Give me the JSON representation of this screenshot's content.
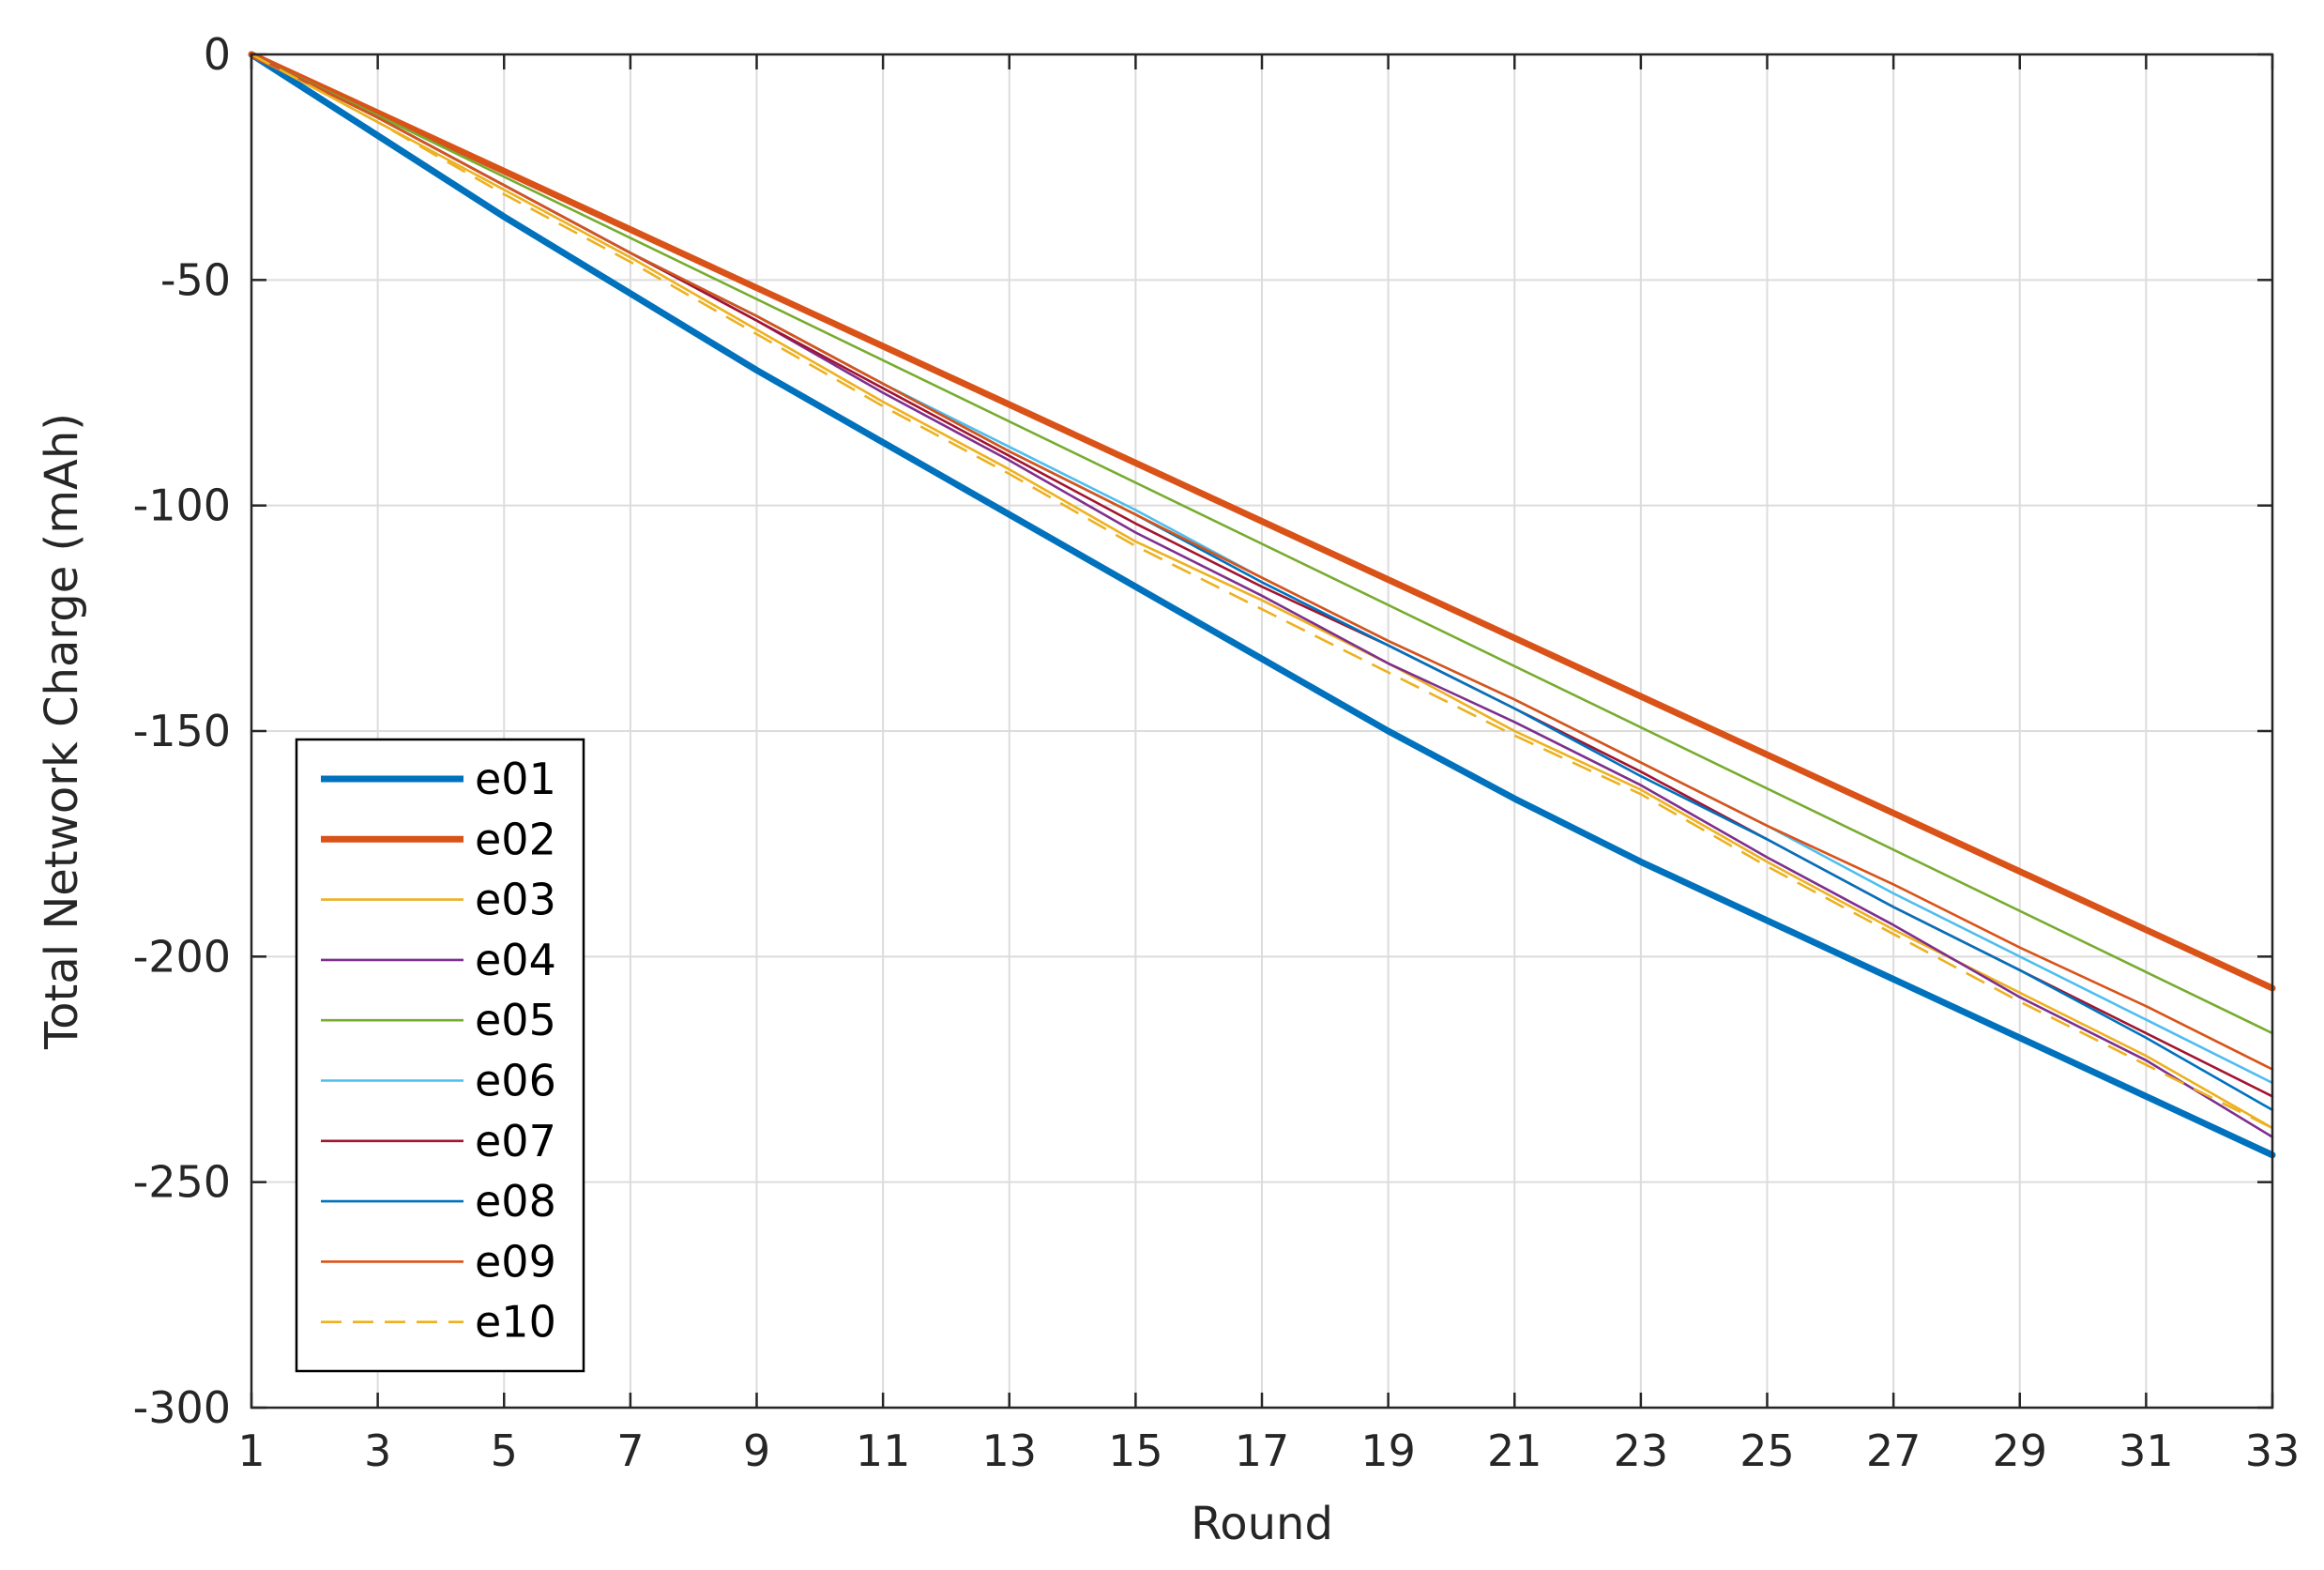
{
  "chart_data": {
    "type": "line",
    "title": "",
    "xlabel": "Round",
    "ylabel": "Total Network Charge (mAh)",
    "xlim": [
      1,
      33
    ],
    "ylim": [
      -300,
      0
    ],
    "xticks": [
      1,
      3,
      5,
      7,
      9,
      11,
      13,
      15,
      17,
      19,
      21,
      23,
      25,
      27,
      29,
      31,
      33
    ],
    "yticks": [
      0,
      -50,
      -100,
      -150,
      -200,
      -250,
      -300
    ],
    "grid": true,
    "legend": "bottom-left",
    "series": [
      {
        "name": "e01",
        "color": "#0072BD",
        "style": "solid",
        "weight": "thick",
        "x": [
          1,
          3,
          5,
          7,
          9,
          11,
          13,
          15,
          17,
          19,
          21,
          23,
          25,
          27,
          29,
          31,
          33
        ],
        "y": [
          0,
          -18,
          -36,
          -53,
          -70,
          -86,
          -102,
          -118,
          -134,
          -150,
          -165,
          -179,
          -192,
          -205,
          -218,
          -231,
          -244
        ]
      },
      {
        "name": "e02",
        "color": "#D95319",
        "style": "solid",
        "weight": "thick",
        "x": [
          1,
          33
        ],
        "y": [
          0,
          -207
        ]
      },
      {
        "name": "e03",
        "color": "#EDB120",
        "style": "solid",
        "weight": "thin",
        "x": [
          1,
          3,
          5,
          7,
          9,
          11,
          13,
          15,
          17,
          19,
          21,
          23,
          25,
          27,
          29,
          31,
          33
        ],
        "y": [
          0,
          -15,
          -30,
          -45,
          -61,
          -77,
          -92,
          -108,
          -121,
          -135,
          -150,
          -163,
          -179,
          -194,
          -208,
          -222,
          -238
        ]
      },
      {
        "name": "e04",
        "color": "#7E2F8E",
        "style": "solid",
        "weight": "thin",
        "x": [
          1,
          3,
          5,
          7,
          9,
          11,
          13,
          15,
          17,
          19,
          21,
          23,
          25,
          27,
          29,
          31,
          33
        ],
        "y": [
          0,
          -14,
          -29,
          -44,
          -59,
          -75,
          -90,
          -106,
          -120,
          -135,
          -148,
          -162,
          -178,
          -193,
          -209,
          -223,
          -240
        ]
      },
      {
        "name": "e05",
        "color": "#77AC30",
        "style": "solid",
        "weight": "thin",
        "x": [
          1,
          33
        ],
        "y": [
          0,
          -217
        ]
      },
      {
        "name": "e06",
        "color": "#4DBEEE",
        "style": "solid",
        "weight": "thin",
        "x": [
          1,
          3,
          5,
          7,
          9,
          11,
          13,
          15,
          17,
          19,
          21,
          23,
          25,
          27,
          29,
          31,
          33
        ],
        "y": [
          0,
          -14,
          -29,
          -44,
          -58,
          -73,
          -87,
          -101,
          -116,
          -130,
          -143,
          -157,
          -171,
          -186,
          -200,
          -214,
          -228
        ]
      },
      {
        "name": "e07",
        "color": "#A2142F",
        "style": "solid",
        "weight": "thin",
        "x": [
          1,
          3,
          5,
          7,
          9,
          11,
          13,
          15,
          17,
          19,
          21,
          23,
          25,
          27,
          29,
          31,
          33
        ],
        "y": [
          0,
          -14,
          -29,
          -44,
          -59,
          -74,
          -89,
          -104,
          -118,
          -131,
          -145,
          -159,
          -174,
          -189,
          -203,
          -217,
          -231
        ]
      },
      {
        "name": "e08",
        "color": "#0072BD",
        "style": "solid",
        "weight": "thin",
        "x": [
          1,
          3,
          5,
          7,
          9,
          11,
          13,
          15,
          17,
          19,
          21,
          23,
          25,
          27,
          29,
          31,
          33
        ],
        "y": [
          0,
          -14,
          -29,
          -44,
          -58,
          -73,
          -88,
          -102,
          -117,
          -131,
          -145,
          -160,
          -174,
          -189,
          -203,
          -218,
          -234
        ]
      },
      {
        "name": "e09",
        "color": "#D95319",
        "style": "solid",
        "weight": "thin",
        "x": [
          1,
          3,
          5,
          7,
          9,
          11,
          13,
          15,
          17,
          19,
          21,
          23,
          25,
          27,
          29,
          31,
          33
        ],
        "y": [
          0,
          -14,
          -29,
          -44,
          -58,
          -73,
          -88,
          -102,
          -116,
          -130,
          -143,
          -157,
          -171,
          -184,
          -198,
          -211,
          -225
        ]
      },
      {
        "name": "e10",
        "color": "#EDB120",
        "style": "dashed",
        "weight": "thin",
        "x": [
          1,
          3,
          5,
          7,
          9,
          11,
          13,
          15,
          17,
          19,
          21,
          23,
          25,
          27,
          29,
          31,
          33
        ],
        "y": [
          0,
          -15,
          -31,
          -46,
          -62,
          -78,
          -93,
          -109,
          -123,
          -137,
          -151,
          -164,
          -180,
          -195,
          -210,
          -224,
          -238
        ]
      }
    ]
  }
}
